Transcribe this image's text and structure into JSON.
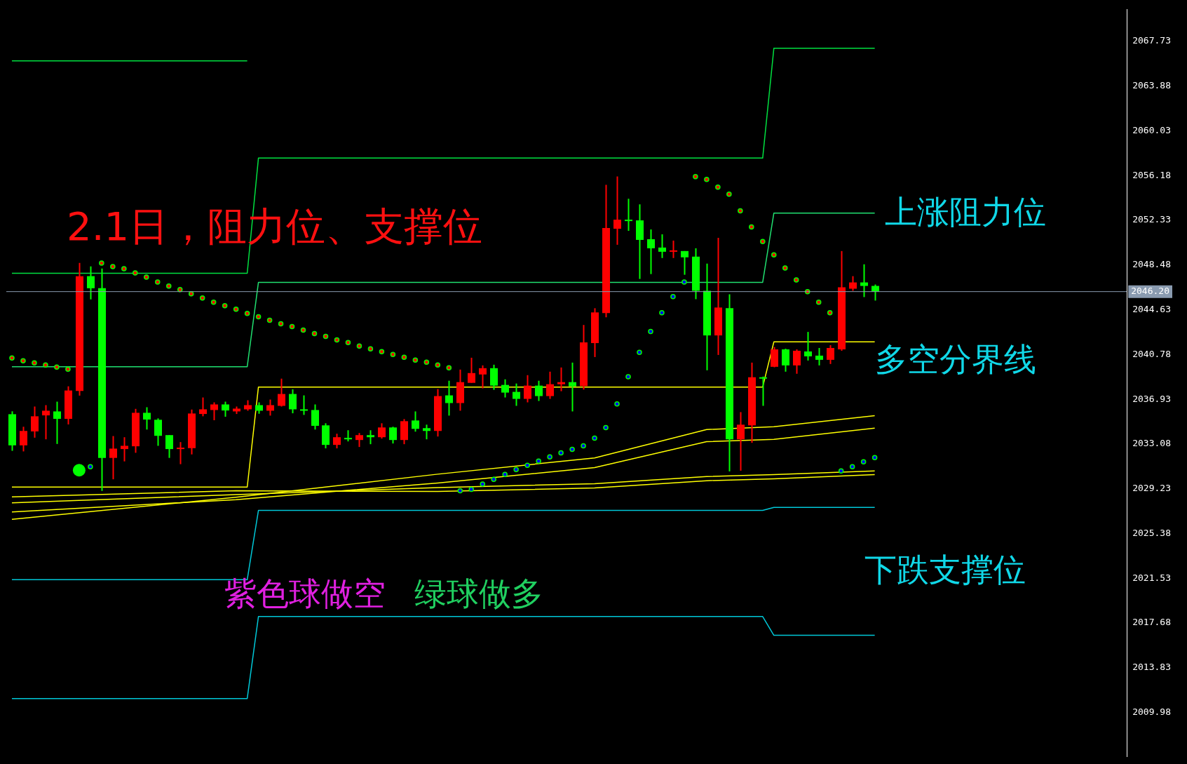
{
  "chart_data": {
    "type": "candlestick",
    "categories": [
      null,
      null,
      null,
      null,
      null,
      null,
      null,
      null,
      null,
      null,
      null,
      null,
      null,
      null,
      null,
      null,
      null,
      null,
      null,
      null,
      null,
      null,
      null,
      null,
      null,
      null,
      null,
      null,
      null,
      null,
      null,
      null,
      null,
      null,
      null,
      null,
      null,
      null,
      null,
      null,
      null,
      null,
      null,
      null,
      null,
      null,
      null,
      null,
      null,
      null,
      null,
      null,
      null,
      null,
      null,
      null,
      null,
      null,
      null,
      null,
      null,
      null,
      null,
      null,
      null,
      null,
      null,
      null,
      null,
      null,
      null,
      null,
      null,
      null,
      null,
      null,
      null,
      null,
      null,
      null,
      null,
      null,
      null,
      null,
      null,
      null,
      null,
      null,
      null,
      null,
      null,
      null,
      null,
      null,
      null,
      null,
      null,
      null,
      null,
      null
    ],
    "ohlc": [
      [
        2035.65,
        2035.9,
        2032.5,
        2032.97
      ],
      [
        2032.97,
        2034.57,
        2032.45,
        2034.21
      ],
      [
        2034.17,
        2036.31,
        2033.63,
        2035.47
      ],
      [
        2035.55,
        2036.43,
        2033.49,
        2035.95
      ],
      [
        2035.89,
        2036.73,
        2033.09,
        2035.25
      ],
      [
        2035.25,
        2038.05,
        2034.77,
        2037.69
      ],
      [
        2037.65,
        2048.67,
        2037.25,
        2047.53
      ],
      [
        2047.53,
        2048.37,
        2045.53,
        2046.49
      ],
      [
        2046.49,
        2048.19,
        2029.05,
        2031.89
      ],
      [
        2031.89,
        2033.77,
        2030.05,
        2032.69
      ],
      [
        2032.65,
        2033.67,
        2031.59,
        2032.93
      ],
      [
        2032.89,
        2036.11,
        2032.33,
        2035.77
      ],
      [
        2035.77,
        2036.25,
        2034.33,
        2035.19
      ],
      [
        2035.17,
        2035.29,
        2032.93,
        2033.79
      ],
      [
        2033.85,
        2033.85,
        2031.89,
        2032.65
      ],
      [
        2032.67,
        2033.25,
        2031.35,
        2032.77
      ],
      [
        2032.73,
        2036.05,
        2032.19,
        2035.71
      ],
      [
        2035.67,
        2037.09,
        2035.47,
        2036.07
      ],
      [
        2036.01,
        2036.67,
        2035.13,
        2036.49
      ],
      [
        2036.49,
        2036.73,
        2035.43,
        2035.97
      ],
      [
        2035.89,
        2036.31,
        2035.67,
        2036.13
      ],
      [
        2036.07,
        2036.85,
        2035.95,
        2036.43
      ],
      [
        2036.43,
        2036.67,
        2035.69,
        2035.95
      ],
      [
        2035.95,
        2036.91,
        2035.53,
        2036.43
      ],
      [
        2036.37,
        2038.71,
        2036.31,
        2037.39
      ],
      [
        2037.39,
        2037.79,
        2035.73,
        2036.07
      ],
      [
        2036.07,
        2037.27,
        2035.59,
        2035.97
      ],
      [
        2036.01,
        2036.49,
        2034.33,
        2034.65
      ],
      [
        2034.69,
        2034.87,
        2032.71,
        2033.01
      ],
      [
        2033.01,
        2033.97,
        2032.71,
        2033.67
      ],
      [
        2033.61,
        2034.27,
        2033.31,
        2033.49
      ],
      [
        2033.43,
        2034.03,
        2032.83,
        2033.85
      ],
      [
        2033.85,
        2034.27,
        2033.07,
        2033.67
      ],
      [
        2033.67,
        2034.87,
        2033.55,
        2034.51
      ],
      [
        2034.51,
        2034.57,
        2033.13,
        2033.43
      ],
      [
        2033.43,
        2035.23,
        2033.07,
        2035.05
      ],
      [
        2035.11,
        2035.89,
        2034.15,
        2034.39
      ],
      [
        2034.45,
        2034.75,
        2033.49,
        2034.21
      ],
      [
        2034.21,
        2037.81,
        2033.73,
        2037.21
      ],
      [
        2037.27,
        2038.53,
        2035.53,
        2036.61
      ],
      [
        2036.61,
        2039.49,
        2035.95,
        2038.41
      ],
      [
        2038.35,
        2040.51,
        2038.35,
        2039.19
      ],
      [
        2039.07,
        2039.85,
        2037.87,
        2039.61
      ],
      [
        2039.61,
        2039.91,
        2037.75,
        2038.11
      ],
      [
        2038.17,
        2038.65,
        2037.09,
        2037.51
      ],
      [
        2037.57,
        2038.29,
        2036.37,
        2036.97
      ],
      [
        2036.97,
        2039.01,
        2036.67,
        2038.11
      ],
      [
        2038.11,
        2038.53,
        2036.79,
        2037.21
      ],
      [
        2037.21,
        2039.31,
        2036.97,
        2038.23
      ],
      [
        2038.23,
        2039.67,
        2037.63,
        2038.41
      ],
      [
        2038.41,
        2040.09,
        2035.89,
        2038.05
      ],
      [
        2038.07,
        2043.33,
        2037.77,
        2041.83
      ],
      [
        2041.77,
        2044.77,
        2040.57,
        2044.41
      ],
      [
        2044.35,
        2055.39,
        2043.99,
        2051.67
      ],
      [
        2051.61,
        2056.11,
        2050.23,
        2052.39
      ],
      [
        2052.39,
        2054.19,
        2051.43,
        2052.29
      ],
      [
        2052.33,
        2053.71,
        2047.29,
        2050.65
      ],
      [
        2050.71,
        2051.55,
        2047.71,
        2049.93
      ],
      [
        2049.99,
        2051.13,
        2049.09,
        2049.63
      ],
      [
        2049.65,
        2050.59,
        2049.09,
        2049.75
      ],
      [
        2049.69,
        2049.69,
        2047.65,
        2049.15
      ],
      [
        2049.21,
        2049.93,
        2045.55,
        2046.27
      ],
      [
        2046.27,
        2048.61,
        2039.43,
        2042.43
      ],
      [
        2042.43,
        2050.83,
        2040.75,
        2044.83
      ],
      [
        2044.77,
        2045.97,
        2030.73,
        2033.49
      ],
      [
        2033.49,
        2035.83,
        2030.79,
        2034.75
      ],
      [
        2034.69,
        2040.09,
        2033.19,
        2038.83
      ],
      [
        2038.83,
        2038.89,
        2036.37,
        2038.71
      ],
      [
        2039.73,
        2041.43,
        2039.69,
        2041.23
      ],
      [
        2041.23,
        2041.29,
        2039.31,
        2039.85
      ],
      [
        2039.85,
        2041.23,
        2039.13,
        2041.11
      ],
      [
        2041.05,
        2042.73,
        2040.27,
        2040.63
      ],
      [
        2040.69,
        2041.35,
        2039.85,
        2040.33
      ],
      [
        2040.33,
        2041.59,
        2039.97,
        2041.35
      ],
      [
        2041.23,
        2049.69,
        2041.11,
        2046.57
      ],
      [
        2046.45,
        2047.53,
        2046.27,
        2046.99
      ],
      [
        2046.99,
        2048.55,
        2045.73,
        2046.69
      ],
      [
        2046.69,
        2046.81,
        2045.43,
        2046.2
      ],
      null,
      null,
      null,
      null,
      null,
      null,
      null,
      null,
      null,
      null,
      null,
      null,
      null,
      null,
      null,
      null,
      null,
      null,
      null,
      null,
      null,
      null
    ],
    "colors": [
      "#00ff00",
      "#ff0000",
      "#ff0000",
      "#ff0000",
      "#00ff00",
      "#ff0000",
      "#ff0000",
      "#00ff00",
      "#00ff00",
      "#ff0000",
      "#ff0000",
      "#ff0000",
      "#00ff00",
      "#00ff00",
      "#00ff00",
      "#ff0000",
      "#ff0000",
      "#ff0000",
      "#ff0000",
      "#00ff00",
      "#ff0000",
      "#ff0000",
      "#00ff00",
      "#ff0000",
      "#ff0000",
      "#00ff00",
      "#00ff00",
      "#00ff00",
      "#00ff00",
      "#ff0000",
      "#00ff00",
      "#ff0000",
      "#00ff00",
      "#ff0000",
      "#00ff00",
      "#ff0000",
      "#00ff00",
      "#00ff00",
      "#ff0000",
      "#00ff00",
      "#ff0000",
      "#ff0000",
      "#ff0000",
      "#00ff00",
      "#00ff00",
      "#00ff00",
      "#ff0000",
      "#00ff00",
      "#ff0000",
      "#ff0000",
      "#00ff00",
      "#ff0000",
      "#ff0000",
      "#ff0000",
      "#ff0000",
      "#00ff00",
      "#00ff00",
      "#00ff00",
      "#00ff00",
      "#ff0000",
      "#00ff00",
      "#00ff00",
      "#00ff00",
      "#ff0000",
      "#00ff00",
      "#ff0000",
      "#ff0000",
      "#00ff00",
      "#ff0000",
      "#00ff00",
      "#ff0000",
      "#00ff00",
      "#00ff00",
      "#ff0000",
      "#ff0000",
      "#ff0000",
      "#00ff00",
      "#00ff00",
      null,
      null,
      null,
      null,
      null,
      null,
      null,
      null,
      null,
      null,
      null,
      null,
      null,
      null,
      null,
      null,
      null,
      null,
      null,
      null,
      null,
      null
    ],
    "ylim": [
      2006.2,
      2070.51
    ],
    "yticks": [
      2009.98,
      2013.83,
      2017.68,
      2021.53,
      2025.38,
      2029.23,
      2033.08,
      2036.93,
      2040.78,
      2044.63,
      2048.48,
      2052.33,
      2056.18,
      2060.03,
      2063.88,
      2067.73
    ],
    "ref_lines": [
      {
        "axis": "y",
        "value": 2046.2,
        "label": "2046.20",
        "color": "#8a9bb0"
      }
    ],
    "annotations": [
      "2.1日，阻力位、支撑位",
      "上涨阻力位",
      "多空分界线",
      "下跌支撑位",
      "紫色球做空",
      "绿球做多"
    ],
    "series": [
      {
        "type": "line",
        "color": "#00e040",
        "values": [
          2066.05,
          null,
          null,
          null,
          null,
          null,
          null,
          null,
          null,
          null,
          null,
          null,
          null,
          null,
          null,
          null,
          null,
          null,
          null,
          null,
          null,
          2066.05,
          null,
          null,
          null,
          null,
          null,
          null,
          null,
          null,
          null,
          null,
          null,
          null,
          null,
          null,
          null,
          null,
          null,
          null,
          null,
          null,
          null,
          null,
          null,
          null,
          null,
          null,
          null,
          null,
          null,
          null,
          null,
          null,
          null,
          null,
          null,
          null,
          null,
          null,
          null,
          null,
          null,
          null,
          null,
          null,
          null,
          null,
          null,
          null,
          null,
          null,
          null,
          null,
          null,
          null,
          null,
          null,
          null,
          null,
          null,
          null,
          null,
          null,
          null,
          null,
          null,
          null,
          null,
          null,
          null,
          null,
          null,
          null,
          null,
          null,
          null,
          null,
          null,
          null
        ]
      },
      {
        "type": "line",
        "color": "#00e040",
        "values": [
          2047.78,
          null,
          null,
          null,
          null,
          null,
          null,
          null,
          null,
          null,
          null,
          null,
          null,
          null,
          null,
          null,
          null,
          null,
          null,
          null,
          null,
          2047.78,
          2057.69,
          null,
          null,
          null,
          null,
          null,
          null,
          null,
          null,
          null,
          null,
          null,
          null,
          null,
          null,
          null,
          null,
          null,
          null,
          null,
          null,
          null,
          null,
          null,
          null,
          null,
          null,
          null,
          null,
          null,
          null,
          null,
          null,
          null,
          null,
          null,
          null,
          null,
          null,
          null,
          null,
          null,
          null,
          null,
          null,
          2057.69,
          2067.15,
          null,
          null,
          null,
          null,
          null,
          null,
          null,
          null,
          2067.15,
          null,
          null,
          null,
          null,
          null,
          null,
          null,
          null,
          null,
          null,
          null,
          null,
          null,
          null,
          null,
          null,
          null,
          null,
          null,
          null,
          null,
          null
        ]
      },
      {
        "type": "line",
        "color": "#20e070",
        "values": [
          2039.74,
          null,
          null,
          null,
          null,
          null,
          null,
          null,
          null,
          null,
          null,
          null,
          null,
          null,
          null,
          null,
          null,
          null,
          null,
          null,
          null,
          2039.74,
          2047.0,
          null,
          null,
          null,
          null,
          null,
          null,
          null,
          null,
          null,
          null,
          null,
          null,
          null,
          null,
          null,
          null,
          null,
          null,
          null,
          null,
          null,
          null,
          null,
          null,
          null,
          null,
          null,
          null,
          null,
          null,
          null,
          null,
          null,
          null,
          null,
          null,
          null,
          null,
          null,
          null,
          null,
          null,
          null,
          null,
          2047.0,
          2052.96,
          null,
          null,
          null,
          null,
          null,
          null,
          null,
          null,
          2052.96,
          null,
          null,
          null,
          null,
          null,
          null,
          null,
          null,
          null,
          null,
          null,
          null,
          null,
          null,
          null,
          null,
          null,
          null,
          null,
          null,
          null,
          null
        ]
      },
      {
        "type": "line",
        "color": "#ffff00",
        "values": [
          2029.38,
          null,
          null,
          null,
          null,
          null,
          null,
          null,
          null,
          null,
          null,
          null,
          null,
          null,
          null,
          null,
          null,
          null,
          null,
          null,
          null,
          2029.38,
          2037.99,
          null,
          null,
          null,
          null,
          null,
          null,
          null,
          null,
          null,
          null,
          null,
          null,
          null,
          null,
          null,
          null,
          null,
          null,
          null,
          null,
          null,
          null,
          null,
          null,
          null,
          null,
          null,
          null,
          null,
          null,
          null,
          null,
          null,
          null,
          null,
          null,
          null,
          null,
          null,
          null,
          null,
          null,
          null,
          null,
          2037.99,
          2041.88,
          null,
          null,
          null,
          null,
          null,
          null,
          null,
          null,
          2041.88,
          null,
          null,
          null,
          null,
          null,
          null,
          null,
          null,
          null,
          null,
          null,
          null,
          null,
          null,
          null,
          null,
          null,
          null,
          null,
          null,
          null,
          null
        ]
      },
      {
        "type": "line",
        "color": "#00c8d8",
        "values": [
          2021.41,
          null,
          null,
          null,
          null,
          null,
          null,
          null,
          null,
          null,
          null,
          null,
          null,
          null,
          null,
          null,
          null,
          null,
          null,
          null,
          null,
          2021.41,
          2027.37,
          null,
          null,
          null,
          null,
          null,
          null,
          null,
          null,
          null,
          null,
          null,
          null,
          null,
          null,
          null,
          null,
          null,
          null,
          null,
          null,
          null,
          null,
          null,
          null,
          null,
          null,
          null,
          null,
          null,
          null,
          null,
          null,
          null,
          null,
          null,
          null,
          null,
          null,
          null,
          null,
          null,
          null,
          null,
          null,
          2027.37,
          2027.63,
          null,
          null,
          null,
          null,
          null,
          null,
          null,
          null,
          2027.63,
          null,
          null,
          null,
          null,
          null,
          null,
          null,
          null,
          null,
          null,
          null,
          null,
          null,
          null,
          null,
          null,
          null,
          null,
          null,
          null,
          null,
          null
        ]
      },
      {
        "type": "line",
        "color": "#00c8d8",
        "values": [
          2011.18,
          null,
          null,
          null,
          null,
          null,
          null,
          null,
          null,
          null,
          null,
          null,
          null,
          null,
          null,
          null,
          null,
          null,
          null,
          null,
          null,
          2011.18,
          2018.24,
          null,
          null,
          null,
          null,
          null,
          null,
          null,
          null,
          null,
          null,
          null,
          null,
          null,
          null,
          null,
          null,
          null,
          null,
          null,
          null,
          null,
          null,
          null,
          null,
          null,
          null,
          null,
          null,
          null,
          null,
          null,
          null,
          null,
          null,
          null,
          null,
          null,
          null,
          null,
          null,
          null,
          null,
          null,
          null,
          2018.24,
          2016.62,
          null,
          null,
          null,
          null,
          null,
          null,
          null,
          null,
          2016.62,
          null,
          null,
          null,
          null,
          null,
          null,
          null,
          null,
          null,
          null,
          null,
          null,
          null,
          null,
          null,
          null,
          null,
          null,
          null,
          null,
          null,
          null
        ]
      },
      {
        "type": "line",
        "color": "#ffff00",
        "values": [
          2026.6,
          null,
          null,
          null,
          null,
          null,
          null,
          null,
          null,
          null,
          null,
          null,
          null,
          null,
          null,
          null,
          null,
          null,
          null,
          null,
          2028.5,
          null,
          null,
          null,
          null,
          null,
          null,
          null,
          null,
          null,
          null,
          null,
          null,
          null,
          null,
          null,
          null,
          null,
          2030.49,
          null,
          null,
          null,
          null,
          null,
          null,
          null,
          null,
          null,
          null,
          null,
          null,
          null,
          2031.89,
          null,
          null,
          null,
          null,
          null,
          null,
          null,
          null,
          null,
          2034.33,
          null,
          null,
          null,
          null,
          null,
          2034.57,
          null,
          null,
          null,
          null,
          null,
          null,
          null,
          null,
          2035.53,
          null,
          null,
          null,
          null,
          null,
          null,
          null,
          null,
          null,
          null,
          null,
          null,
          null,
          null,
          null,
          null,
          null,
          null,
          null,
          null,
          null,
          null
        ]
      },
      {
        "type": "line",
        "color": "#ffff00",
        "values": [
          2027.24,
          null,
          null,
          null,
          null,
          null,
          null,
          null,
          null,
          null,
          null,
          null,
          null,
          null,
          null,
          null,
          null,
          null,
          null,
          null,
          2028.3,
          null,
          null,
          null,
          null,
          null,
          null,
          null,
          null,
          null,
          null,
          null,
          null,
          null,
          null,
          null,
          null,
          null,
          2029.73,
          null,
          null,
          null,
          null,
          null,
          null,
          null,
          null,
          null,
          null,
          null,
          null,
          null,
          2031.05,
          null,
          null,
          null,
          null,
          null,
          null,
          null,
          null,
          null,
          2033.29,
          null,
          null,
          null,
          null,
          null,
          2033.49,
          null,
          null,
          null,
          null,
          null,
          null,
          null,
          null,
          2034.45,
          null,
          null,
          null,
          null,
          null,
          null,
          null,
          null,
          null,
          null,
          null,
          null,
          null,
          null,
          null,
          null,
          null,
          null,
          null,
          null,
          null,
          null
        ]
      },
      {
        "type": "line",
        "color": "#ffff00",
        "values": [
          2028.02,
          null,
          null,
          null,
          null,
          null,
          null,
          null,
          null,
          null,
          null,
          null,
          null,
          null,
          null,
          null,
          null,
          null,
          null,
          null,
          2028.73,
          null,
          null,
          null,
          null,
          null,
          null,
          null,
          null,
          null,
          null,
          null,
          null,
          null,
          null,
          null,
          null,
          null,
          2029.33,
          null,
          null,
          null,
          null,
          null,
          null,
          null,
          null,
          null,
          null,
          null,
          null,
          null,
          2029.67,
          null,
          null,
          null,
          null,
          null,
          null,
          null,
          null,
          null,
          2030.29,
          null,
          null,
          null,
          null,
          null,
          2030.45,
          null,
          null,
          null,
          null,
          null,
          null,
          null,
          null,
          2030.77,
          null,
          null,
          null,
          null,
          null,
          null,
          null,
          null,
          null,
          null,
          null,
          null,
          null,
          null,
          null,
          null,
          null,
          null,
          null,
          null,
          null,
          null
        ]
      },
      {
        "type": "line",
        "color": "#ffff00",
        "values": [
          2028.54,
          null,
          null,
          null,
          null,
          null,
          null,
          null,
          null,
          null,
          null,
          null,
          null,
          null,
          null,
          null,
          null,
          null,
          null,
          null,
          2029.06,
          null,
          null,
          null,
          null,
          null,
          null,
          null,
          null,
          null,
          null,
          null,
          null,
          null,
          null,
          null,
          null,
          null,
          2029.0,
          null,
          null,
          null,
          null,
          null,
          null,
          null,
          null,
          null,
          null,
          null,
          null,
          null,
          2029.3,
          null,
          null,
          null,
          null,
          null,
          null,
          null,
          null,
          null,
          2029.93,
          null,
          null,
          null,
          null,
          null,
          2030.09,
          null,
          null,
          null,
          null,
          null,
          null,
          null,
          null,
          2030.45,
          null,
          null,
          null,
          null,
          null,
          null,
          null,
          null,
          null,
          null,
          null,
          null,
          null,
          null,
          null,
          null,
          null,
          null,
          null,
          null,
          null,
          null
        ]
      },
      {
        "type": "scatter",
        "marker": "circle",
        "color": "#ff0000",
        "values": [
          2040.49,
          2040.25,
          2040.07,
          2039.89,
          2039.71,
          2039.53,
          null,
          null,
          2048.65,
          2048.35,
          2048.17,
          2047.81,
          2047.45,
          2047.03,
          2046.67,
          2046.37,
          2046.01,
          2045.65,
          2045.29,
          2044.99,
          2044.69,
          2044.33,
          2044.03,
          2043.73,
          2043.43,
          2043.19,
          2042.89,
          2042.59,
          2042.35,
          2042.05,
          2041.81,
          2041.51,
          2041.27,
          2041.03,
          2040.79,
          2040.55,
          2040.31,
          2040.13,
          2039.89,
          2039.65,
          null,
          null,
          null,
          null,
          null,
          null,
          null,
          null,
          null,
          null,
          null,
          null,
          null,
          null,
          null,
          null,
          null,
          null,
          null,
          null,
          null,
          2056.09,
          2055.85,
          2055.19,
          2054.59,
          2053.15,
          2051.77,
          2050.51,
          2049.37,
          2048.23,
          2047.21,
          2046.19,
          2045.29,
          2044.39,
          null,
          null,
          null,
          null,
          null,
          null,
          null,
          null,
          null,
          null,
          null,
          null,
          null,
          null,
          null,
          null,
          null,
          null,
          null,
          null,
          null,
          null,
          null,
          null,
          null,
          null
        ]
      },
      {
        "type": "scatter",
        "marker": "circle",
        "color": "#0000ff",
        "values": [
          null,
          null,
          null,
          null,
          null,
          null,
          null,
          2031.13,
          null,
          null,
          null,
          null,
          null,
          null,
          null,
          null,
          null,
          null,
          null,
          null,
          null,
          null,
          null,
          null,
          null,
          null,
          null,
          null,
          null,
          null,
          null,
          null,
          null,
          null,
          null,
          null,
          null,
          null,
          null,
          null,
          2029.06,
          2029.18,
          2029.63,
          2030.05,
          2030.47,
          2030.89,
          2031.25,
          2031.61,
          2031.97,
          2032.33,
          2032.63,
          2032.93,
          2033.59,
          2034.49,
          2036.53,
          2038.87,
          2040.97,
          2042.77,
          2044.39,
          2045.77,
          2047.03,
          null,
          null,
          null,
          null,
          null,
          null,
          null,
          null,
          null,
          null,
          null,
          null,
          null,
          2030.77,
          2031.13,
          2031.55,
          2031.91,
          null,
          null,
          null,
          null,
          null,
          null,
          null,
          null,
          null,
          null,
          null,
          null,
          null,
          null,
          null,
          null,
          null,
          null,
          null,
          null,
          null,
          null
        ]
      },
      {
        "type": "scatter",
        "marker": "circle",
        "color": "#00ff00",
        "values": [
          null,
          null,
          null,
          null,
          null,
          null,
          2030.83,
          null,
          null,
          null,
          null,
          null,
          null,
          null,
          null,
          null,
          null,
          null,
          null,
          null,
          null,
          null,
          null,
          null,
          null,
          null,
          null,
          null,
          null,
          null,
          null,
          null,
          null,
          null,
          null,
          null,
          null,
          null,
          null,
          null,
          null,
          null,
          null,
          null,
          null,
          null,
          null,
          null,
          null,
          null,
          null,
          null,
          null,
          null,
          null,
          null,
          null,
          null,
          null,
          null,
          null,
          null,
          null,
          null,
          null,
          null,
          null,
          null,
          null,
          null,
          null,
          null,
          null,
          null,
          null,
          null,
          null,
          null,
          null,
          null,
          null,
          null,
          null,
          null,
          null,
          null,
          null,
          null,
          null,
          null,
          null,
          null,
          null,
          null,
          null,
          null,
          null,
          null,
          null,
          null
        ]
      }
    ]
  }
}
